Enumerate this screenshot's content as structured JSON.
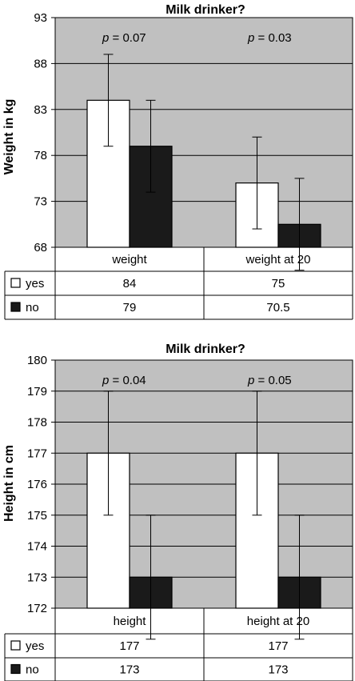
{
  "chart_data": [
    {
      "type": "bar",
      "title": "Milk drinker?",
      "ylabel": "Weight in kg",
      "xlabel": "",
      "ylim": [
        68,
        93
      ],
      "yticks": [
        "68",
        "73",
        "78",
        "83",
        "88",
        "93"
      ],
      "categories": [
        "weight",
        "weight at 20"
      ],
      "series": [
        {
          "name": "yes",
          "values": [
            84,
            75
          ],
          "errors": [
            5,
            5
          ],
          "value_labels": [
            "84",
            "75"
          ],
          "color": "#ffffff"
        },
        {
          "name": "no",
          "values": [
            79,
            70.5
          ],
          "errors": [
            5,
            5
          ],
          "value_labels": [
            "79",
            "70.5"
          ],
          "color": "#1a1a1a"
        }
      ],
      "annotations": [
        {
          "p_label": "p",
          "value_label": " = 0.07"
        },
        {
          "p_label": "p",
          "value_label": " = 0.03"
        }
      ],
      "grid": true,
      "plot_background": "#c0c0c0",
      "legend": "data table"
    },
    {
      "type": "bar",
      "title": "Milk drinker?",
      "ylabel": "Height in cm",
      "xlabel": "",
      "ylim": [
        172,
        180
      ],
      "yticks": [
        "172",
        "173",
        "174",
        "175",
        "176",
        "177",
        "178",
        "179",
        "180"
      ],
      "categories": [
        "height",
        "height at 20"
      ],
      "series": [
        {
          "name": "yes",
          "values": [
            177,
            177
          ],
          "errors": [
            2,
            2
          ],
          "value_labels": [
            "177",
            "177"
          ],
          "color": "#ffffff"
        },
        {
          "name": "no",
          "values": [
            173,
            173
          ],
          "errors": [
            2,
            2
          ],
          "value_labels": [
            "173",
            "173"
          ],
          "color": "#1a1a1a"
        }
      ],
      "annotations": [
        {
          "p_label": "p",
          "value_label": " = 0.04"
        },
        {
          "p_label": "p",
          "value_label": " = 0.05"
        }
      ],
      "grid": true,
      "plot_background": "#c0c0c0",
      "legend": "data table"
    }
  ]
}
